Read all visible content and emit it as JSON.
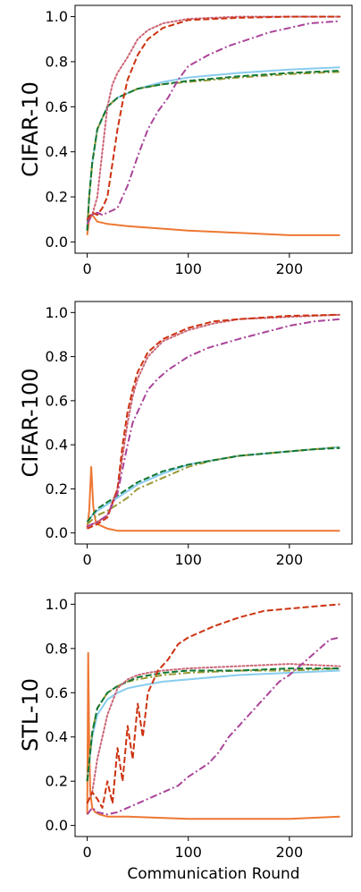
{
  "chart_data": [
    {
      "type": "line",
      "ylabel": "CIFAR-10",
      "xlabel": "",
      "xlim": [
        -12,
        262
      ],
      "ylim": [
        -0.05,
        1.05
      ],
      "xticks": [
        0,
        100,
        200
      ],
      "yticks": [
        0.0,
        0.2,
        0.4,
        0.6,
        0.8,
        1.0
      ],
      "ytick_labels": [
        "0.0",
        "0.2",
        "0.4",
        "0.6",
        "0.8",
        "1.0"
      ],
      "series": [
        {
          "color": "#ee7733",
          "style": "solid",
          "x": [
            0,
            2,
            5,
            10,
            20,
            40,
            70,
            100,
            150,
            200,
            250
          ],
          "y": [
            0.03,
            0.1,
            0.12,
            0.09,
            0.08,
            0.07,
            0.06,
            0.05,
            0.04,
            0.03,
            0.03
          ]
        },
        {
          "color": "#88ccee",
          "style": "solid",
          "x": [
            0,
            2,
            5,
            10,
            20,
            30,
            50,
            75,
            100,
            150,
            200,
            250
          ],
          "y": [
            0.05,
            0.2,
            0.35,
            0.5,
            0.6,
            0.64,
            0.68,
            0.71,
            0.73,
            0.75,
            0.765,
            0.775
          ]
        },
        {
          "color": "#999933",
          "style": "dashdot",
          "x": [
            0,
            2,
            5,
            10,
            20,
            30,
            50,
            75,
            100,
            150,
            200,
            250
          ],
          "y": [
            0.05,
            0.2,
            0.35,
            0.5,
            0.6,
            0.64,
            0.68,
            0.7,
            0.71,
            0.73,
            0.745,
            0.755
          ]
        },
        {
          "color": "#117733",
          "style": "dashed",
          "x": [
            0,
            2,
            5,
            10,
            20,
            30,
            50,
            75,
            100,
            150,
            200,
            250
          ],
          "y": [
            0.05,
            0.2,
            0.35,
            0.5,
            0.6,
            0.64,
            0.68,
            0.7,
            0.715,
            0.735,
            0.75,
            0.76
          ]
        },
        {
          "color": "#cc6677",
          "style": "dotted",
          "x": [
            0,
            5,
            10,
            15,
            20,
            25,
            30,
            40,
            50,
            60,
            75,
            100,
            150,
            200,
            250
          ],
          "y": [
            0.1,
            0.12,
            0.2,
            0.4,
            0.6,
            0.7,
            0.75,
            0.82,
            0.9,
            0.94,
            0.97,
            0.99,
            1.0,
            1.0,
            1.0
          ]
        },
        {
          "color": "#cc3311",
          "style": "dashed",
          "x": [
            0,
            5,
            10,
            15,
            20,
            25,
            30,
            35,
            40,
            50,
            60,
            75,
            100,
            150,
            200,
            250
          ],
          "y": [
            0.1,
            0.13,
            0.12,
            0.15,
            0.2,
            0.35,
            0.5,
            0.62,
            0.72,
            0.83,
            0.9,
            0.95,
            0.985,
            0.995,
            1.0,
            1.0
          ]
        },
        {
          "color": "#aa4499",
          "style": "dashdot",
          "x": [
            0,
            5,
            10,
            15,
            20,
            30,
            40,
            50,
            60,
            70,
            80,
            90,
            100,
            120,
            140,
            160,
            180,
            200,
            220,
            250
          ],
          "y": [
            0.08,
            0.12,
            0.13,
            0.12,
            0.13,
            0.15,
            0.25,
            0.38,
            0.5,
            0.58,
            0.64,
            0.72,
            0.78,
            0.83,
            0.87,
            0.9,
            0.93,
            0.95,
            0.97,
            0.98
          ]
        }
      ]
    },
    {
      "type": "line",
      "ylabel": "CIFAR-100",
      "xlabel": "",
      "xlim": [
        -12,
        262
      ],
      "ylim": [
        -0.05,
        1.05
      ],
      "xticks": [
        0,
        100,
        200
      ],
      "yticks": [
        0.0,
        0.2,
        0.4,
        0.6,
        0.8,
        1.0
      ],
      "ytick_labels": [
        "0.0",
        "0.2",
        "0.4",
        "0.6",
        "0.8",
        "1.0"
      ],
      "series": [
        {
          "color": "#ee7733",
          "style": "solid",
          "x": [
            0,
            2,
            4,
            6,
            8,
            10,
            15,
            20,
            30,
            50,
            100,
            150,
            200,
            250
          ],
          "y": [
            0.02,
            0.1,
            0.3,
            0.12,
            0.06,
            0.04,
            0.03,
            0.02,
            0.01,
            0.01,
            0.01,
            0.01,
            0.01,
            0.01
          ]
        },
        {
          "color": "#88ccee",
          "style": "solid",
          "x": [
            0,
            5,
            10,
            20,
            30,
            40,
            50,
            75,
            100,
            125,
            150,
            175,
            200,
            225,
            250
          ],
          "y": [
            0.05,
            0.08,
            0.1,
            0.13,
            0.16,
            0.19,
            0.22,
            0.27,
            0.31,
            0.33,
            0.35,
            0.36,
            0.37,
            0.38,
            0.39
          ]
        },
        {
          "color": "#999933",
          "style": "dashdot",
          "x": [
            0,
            5,
            10,
            20,
            30,
            40,
            50,
            75,
            100,
            125,
            150,
            175,
            200,
            225,
            250
          ],
          "y": [
            0.04,
            0.06,
            0.08,
            0.1,
            0.13,
            0.16,
            0.2,
            0.25,
            0.3,
            0.33,
            0.35,
            0.36,
            0.37,
            0.38,
            0.39
          ]
        },
        {
          "color": "#117733",
          "style": "dashed",
          "x": [
            0,
            5,
            10,
            20,
            30,
            40,
            50,
            75,
            100,
            125,
            150,
            175,
            200,
            225,
            250
          ],
          "y": [
            0.05,
            0.08,
            0.11,
            0.14,
            0.17,
            0.2,
            0.23,
            0.28,
            0.31,
            0.33,
            0.35,
            0.36,
            0.37,
            0.38,
            0.385
          ]
        },
        {
          "color": "#cc6677",
          "style": "dotted",
          "x": [
            0,
            10,
            20,
            30,
            35,
            40,
            45,
            50,
            60,
            75,
            100,
            125,
            150,
            200,
            250
          ],
          "y": [
            0.03,
            0.05,
            0.08,
            0.2,
            0.35,
            0.5,
            0.62,
            0.7,
            0.8,
            0.87,
            0.92,
            0.95,
            0.97,
            0.98,
            0.99
          ]
        },
        {
          "color": "#cc3311",
          "style": "dashed",
          "x": [
            0,
            10,
            20,
            30,
            35,
            40,
            45,
            50,
            60,
            75,
            100,
            125,
            150,
            200,
            250
          ],
          "y": [
            0.02,
            0.04,
            0.07,
            0.2,
            0.4,
            0.55,
            0.65,
            0.73,
            0.82,
            0.88,
            0.93,
            0.96,
            0.97,
            0.985,
            0.99
          ]
        },
        {
          "color": "#aa4499",
          "style": "dashdot",
          "x": [
            0,
            10,
            20,
            30,
            40,
            45,
            50,
            55,
            60,
            70,
            80,
            100,
            120,
            150,
            175,
            200,
            225,
            250
          ],
          "y": [
            0.03,
            0.05,
            0.08,
            0.18,
            0.4,
            0.5,
            0.55,
            0.6,
            0.65,
            0.7,
            0.74,
            0.8,
            0.84,
            0.88,
            0.91,
            0.94,
            0.96,
            0.97
          ]
        }
      ]
    },
    {
      "type": "line",
      "ylabel": "STL-10",
      "xlabel": "Communication Round",
      "xlim": [
        -12,
        262
      ],
      "ylim": [
        -0.05,
        1.05
      ],
      "xticks": [
        0,
        100,
        200
      ],
      "yticks": [
        0.0,
        0.2,
        0.4,
        0.6,
        0.8,
        1.0
      ],
      "ytick_labels": [
        "0.0",
        "0.2",
        "0.4",
        "0.6",
        "0.8",
        "1.0"
      ],
      "series": [
        {
          "color": "#ee7733",
          "style": "solid",
          "x": [
            0,
            1,
            2,
            3,
            5,
            8,
            12,
            20,
            40,
            100,
            150,
            200,
            250
          ],
          "y": [
            0.05,
            0.78,
            0.4,
            0.15,
            0.08,
            0.06,
            0.05,
            0.04,
            0.04,
            0.03,
            0.03,
            0.03,
            0.04
          ]
        },
        {
          "color": "#88ccee",
          "style": "solid",
          "x": [
            0,
            5,
            10,
            20,
            30,
            40,
            50,
            75,
            100,
            150,
            200,
            250
          ],
          "y": [
            0.2,
            0.4,
            0.5,
            0.57,
            0.6,
            0.62,
            0.63,
            0.65,
            0.66,
            0.68,
            0.69,
            0.7
          ]
        },
        {
          "color": "#999933",
          "style": "dashdot",
          "x": [
            0,
            5,
            10,
            20,
            30,
            40,
            50,
            75,
            100,
            150,
            200,
            250
          ],
          "y": [
            0.2,
            0.42,
            0.53,
            0.6,
            0.63,
            0.65,
            0.66,
            0.68,
            0.69,
            0.7,
            0.7,
            0.71
          ]
        },
        {
          "color": "#117733",
          "style": "dashed",
          "x": [
            0,
            5,
            10,
            20,
            30,
            40,
            50,
            75,
            100,
            150,
            200,
            250
          ],
          "y": [
            0.2,
            0.42,
            0.53,
            0.6,
            0.63,
            0.65,
            0.67,
            0.69,
            0.7,
            0.7,
            0.71,
            0.71
          ]
        },
        {
          "color": "#cc6677",
          "style": "dotted",
          "x": [
            0,
            5,
            10,
            20,
            30,
            40,
            50,
            60,
            75,
            100,
            150,
            200,
            250
          ],
          "y": [
            0.1,
            0.15,
            0.3,
            0.5,
            0.62,
            0.66,
            0.68,
            0.69,
            0.7,
            0.71,
            0.72,
            0.73,
            0.72
          ]
        },
        {
          "color": "#cc3311",
          "style": "dashed",
          "x": [
            0,
            5,
            10,
            15,
            20,
            25,
            30,
            35,
            40,
            45,
            50,
            55,
            60,
            70,
            80,
            90,
            100,
            125,
            150,
            175,
            200,
            225,
            250
          ],
          "y": [
            0.1,
            0.15,
            0.12,
            0.08,
            0.2,
            0.1,
            0.35,
            0.2,
            0.45,
            0.3,
            0.55,
            0.4,
            0.6,
            0.7,
            0.75,
            0.82,
            0.85,
            0.9,
            0.94,
            0.97,
            0.98,
            0.99,
            1.0
          ]
        },
        {
          "color": "#aa4499",
          "style": "dashdot",
          "x": [
            0,
            5,
            10,
            20,
            30,
            40,
            50,
            60,
            70,
            80,
            90,
            100,
            110,
            120,
            130,
            140,
            150,
            160,
            170,
            180,
            190,
            200,
            210,
            220,
            230,
            240,
            250
          ],
          "y": [
            0.05,
            0.08,
            0.06,
            0.05,
            0.06,
            0.08,
            0.1,
            0.12,
            0.14,
            0.16,
            0.18,
            0.22,
            0.25,
            0.28,
            0.33,
            0.4,
            0.45,
            0.5,
            0.55,
            0.6,
            0.65,
            0.68,
            0.72,
            0.76,
            0.8,
            0.84,
            0.85
          ]
        }
      ]
    }
  ]
}
